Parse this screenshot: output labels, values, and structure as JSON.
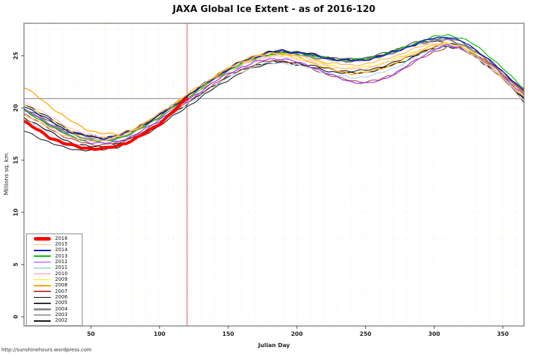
{
  "title": "JAXA Global Ice Extent - as of 2016-120",
  "footer_url": "http://sunshinehours.wordpress.com",
  "chart_data": {
    "type": "line",
    "title": "JAXA Global Ice Extent - as of 2016-120",
    "xlabel": "Julian Day",
    "ylabel": "Millions sq. km.",
    "xlim": [
      1,
      366
    ],
    "ylim": [
      -1,
      28
    ],
    "x_ticks": [
      50,
      100,
      150,
      200,
      250,
      300,
      350
    ],
    "y_ticks": [
      0,
      5,
      10,
      15,
      20,
      25
    ],
    "grid": {
      "color": "#ECECD2",
      "x_step_days": 10,
      "y_step": 2.5,
      "style": "dotted"
    },
    "reference_lines": {
      "horizontal": {
        "y": 20.9,
        "color": "#8A8A8A"
      },
      "vertical": {
        "x": 120,
        "color": "#E06868"
      }
    },
    "legend_position": "bottom-left",
    "sample_days": [
      1,
      10,
      20,
      30,
      40,
      50,
      60,
      70,
      80,
      90,
      100,
      110,
      120,
      130,
      140,
      150,
      160,
      170,
      180,
      190,
      200,
      210,
      220,
      230,
      240,
      250,
      260,
      270,
      280,
      290,
      300,
      310,
      320,
      330,
      340,
      350,
      360,
      366
    ],
    "series": [
      {
        "name": "2016",
        "color": "#FF0000",
        "width": 4.2,
        "values": [
          18.7,
          18.0,
          17.2,
          16.6,
          16.3,
          16.1,
          16.1,
          16.4,
          16.9,
          17.6,
          18.5,
          19.7,
          20.9
        ]
      },
      {
        "name": "2015",
        "color": "#FDBF6F",
        "width": 1.5,
        "values": [
          19.4,
          18.8,
          18.1,
          17.4,
          17.0,
          16.9,
          16.9,
          17.2,
          17.8,
          18.6,
          19.5,
          20.4,
          21.3,
          22.2,
          23.0,
          23.8,
          24.4,
          24.9,
          25.2,
          25.2,
          25.0,
          24.7,
          24.4,
          24.2,
          24.1,
          24.2,
          24.5,
          24.9,
          25.4,
          25.9,
          26.2,
          26.2,
          25.8,
          25.0,
          24.0,
          22.9,
          21.7,
          21.1
        ]
      },
      {
        "name": "2014",
        "color": "#0000DD",
        "width": 1.2,
        "values": [
          20.2,
          19.6,
          18.8,
          18.0,
          17.5,
          17.2,
          17.1,
          17.3,
          17.8,
          18.5,
          19.3,
          20.2,
          21.1,
          22.0,
          22.9,
          23.7,
          24.4,
          24.9,
          25.3,
          25.4,
          25.3,
          25.1,
          24.8,
          24.6,
          24.5,
          24.6,
          24.9,
          25.3,
          25.8,
          26.3,
          26.7,
          26.8,
          26.4,
          25.6,
          24.6,
          23.4,
          22.3,
          21.6
        ]
      },
      {
        "name": "2013",
        "color": "#00BB00",
        "width": 1.2,
        "values": [
          19.7,
          19.1,
          18.3,
          17.6,
          17.1,
          16.8,
          16.8,
          17.1,
          17.6,
          18.3,
          19.2,
          20.1,
          21.0,
          21.9,
          22.8,
          23.6,
          24.3,
          24.8,
          25.2,
          25.3,
          25.2,
          25.0,
          24.8,
          24.6,
          24.6,
          24.7,
          25.0,
          25.4,
          25.9,
          26.4,
          26.8,
          27.0,
          26.7,
          26.0,
          25.0,
          23.8,
          22.5,
          21.8
        ]
      },
      {
        "name": "2012",
        "color": "#9933FF",
        "width": 1.2,
        "values": [
          19.9,
          19.2,
          18.4,
          17.6,
          17.0,
          16.7,
          16.6,
          16.8,
          17.3,
          18.0,
          18.9,
          19.8,
          20.7,
          21.6,
          22.5,
          23.3,
          23.9,
          24.4,
          24.7,
          24.7,
          24.4,
          24.0,
          23.4,
          22.9,
          22.5,
          22.3,
          22.6,
          23.2,
          24.0,
          24.9,
          25.6,
          26.0,
          25.7,
          25.0,
          24.1,
          23.0,
          21.8,
          21.2
        ]
      },
      {
        "name": "2011",
        "color": "#ADD8E6",
        "width": 1.2,
        "values": [
          19.0,
          18.3,
          17.5,
          16.8,
          16.4,
          16.2,
          16.2,
          16.5,
          17.0,
          17.7,
          18.5,
          19.4,
          20.3,
          21.2,
          22.1,
          22.9,
          23.5,
          24.0,
          24.3,
          24.3,
          24.1,
          23.8,
          23.4,
          23.1,
          22.9,
          23.0,
          23.3,
          23.8,
          24.4,
          25.1,
          25.7,
          25.9,
          25.6,
          24.9,
          24.0,
          22.9,
          21.7,
          21.0
        ]
      },
      {
        "name": "2010",
        "color": "#FFC0CB",
        "width": 1.2,
        "values": [
          20.6,
          20.0,
          19.2,
          18.4,
          17.8,
          17.4,
          17.2,
          17.3,
          17.7,
          18.3,
          19.1,
          20.0,
          20.9,
          21.8,
          22.7,
          23.5,
          24.1,
          24.6,
          24.9,
          24.9,
          24.7,
          24.4,
          24.1,
          23.8,
          23.7,
          23.8,
          24.1,
          24.5,
          25.0,
          25.5,
          26.0,
          26.1,
          25.7,
          24.9,
          23.9,
          22.7,
          21.4,
          20.7
        ]
      },
      {
        "name": "2009",
        "color": "#FFE600",
        "width": 1.2,
        "values": [
          20.3,
          19.7,
          18.9,
          18.1,
          17.5,
          17.2,
          17.1,
          17.3,
          17.8,
          18.4,
          19.2,
          20.1,
          21.0,
          21.9,
          22.8,
          23.6,
          24.2,
          24.7,
          25.0,
          25.0,
          24.8,
          24.5,
          24.2,
          23.9,
          23.8,
          23.9,
          24.2,
          24.6,
          25.1,
          25.6,
          26.0,
          26.2,
          25.9,
          25.1,
          24.1,
          22.9,
          21.6,
          21.0
        ]
      },
      {
        "name": "2008",
        "color": "#FFA500",
        "width": 1.3,
        "values": [
          22.0,
          21.2,
          20.2,
          19.2,
          18.4,
          17.8,
          17.5,
          17.5,
          17.9,
          18.6,
          19.4,
          20.3,
          21.2,
          22.1,
          23.0,
          23.8,
          24.5,
          25.0,
          25.3,
          25.2,
          24.9,
          24.4,
          23.9,
          23.5,
          23.3,
          23.4,
          23.7,
          24.2,
          24.8,
          25.4,
          25.9,
          26.1,
          25.8,
          25.1,
          24.1,
          23.0,
          21.9,
          21.3
        ]
      },
      {
        "name": "2007",
        "color": "#BB4444",
        "width": 1.2,
        "values": [
          19.5,
          18.8,
          18.0,
          17.3,
          16.8,
          16.5,
          16.5,
          16.7,
          17.2,
          17.9,
          18.7,
          19.6,
          20.5,
          21.4,
          22.3,
          23.1,
          23.7,
          24.2,
          24.5,
          24.5,
          24.2,
          23.8,
          23.3,
          22.9,
          22.6,
          22.5,
          22.7,
          23.2,
          23.9,
          24.7,
          25.4,
          25.8,
          25.7,
          25.1,
          24.3,
          23.3,
          22.2,
          21.5
        ]
      },
      {
        "name": "2006",
        "color": "#000000",
        "width": 1.1,
        "values": [
          19.1,
          18.5,
          17.7,
          17.0,
          16.5,
          16.3,
          16.3,
          16.6,
          17.1,
          17.8,
          18.6,
          19.5,
          20.4,
          21.3,
          22.2,
          23.0,
          23.6,
          24.1,
          24.4,
          24.4,
          24.2,
          23.9,
          23.6,
          23.4,
          23.3,
          23.4,
          23.7,
          24.1,
          24.6,
          25.2,
          25.7,
          25.9,
          25.6,
          24.9,
          23.9,
          22.8,
          21.6,
          20.9
        ]
      },
      {
        "name": "2005",
        "color": "#2B2B2B",
        "width": 1.2,
        "values": [
          17.8,
          17.3,
          16.7,
          16.2,
          16.0,
          15.95,
          16.0,
          16.3,
          16.8,
          17.5,
          18.3,
          19.2,
          20.1,
          21.0,
          21.9,
          22.7,
          23.4,
          23.9,
          24.3,
          24.4,
          24.3,
          24.1,
          23.8,
          23.6,
          23.5,
          23.6,
          23.9,
          24.3,
          24.8,
          25.3,
          25.8,
          26.0,
          25.7,
          25.0,
          24.0,
          22.8,
          21.5,
          20.8
        ]
      },
      {
        "name": "2004",
        "color": "#8C8C8C",
        "width": 2.4,
        "values": [
          19.8,
          19.2,
          18.5,
          17.8,
          17.3,
          17.0,
          16.9,
          17.1,
          17.6,
          18.3,
          19.1,
          20.0,
          20.9,
          21.8,
          22.7,
          23.5,
          24.2,
          24.7,
          25.1,
          25.2,
          25.1,
          24.9,
          24.7,
          24.5,
          24.5,
          24.6,
          24.9,
          25.3,
          25.8,
          26.2,
          26.5,
          26.5,
          26.1,
          25.4,
          24.4,
          23.2,
          22.0,
          21.4
        ]
      },
      {
        "name": "2003",
        "color": "#4D4D4D",
        "width": 1.2,
        "values": [
          20.0,
          19.4,
          18.7,
          18.0,
          17.5,
          17.2,
          17.1,
          17.3,
          17.8,
          18.5,
          19.3,
          20.2,
          21.1,
          22.0,
          22.9,
          23.7,
          24.4,
          24.9,
          25.3,
          25.4,
          25.3,
          25.1,
          24.9,
          24.7,
          24.7,
          24.8,
          25.1,
          25.5,
          26.0,
          26.4,
          26.7,
          26.7,
          26.3,
          25.6,
          24.6,
          23.5,
          22.3,
          21.7
        ]
      },
      {
        "name": "2002",
        "color": "#111111",
        "width": 1.1,
        "values": [
          20.4,
          19.8,
          19.0,
          18.2,
          17.6,
          17.3,
          17.2,
          17.4,
          17.9,
          18.6,
          19.4,
          20.3,
          21.2,
          22.1,
          23.0,
          23.8,
          24.5,
          25.0,
          25.4,
          25.5,
          25.4,
          25.2,
          24.9,
          24.7,
          24.6,
          24.7,
          25.0,
          25.4,
          25.8,
          26.2,
          26.4,
          26.3,
          25.8,
          25.0,
          24.0,
          22.8,
          21.5,
          20.4
        ]
      }
    ]
  }
}
